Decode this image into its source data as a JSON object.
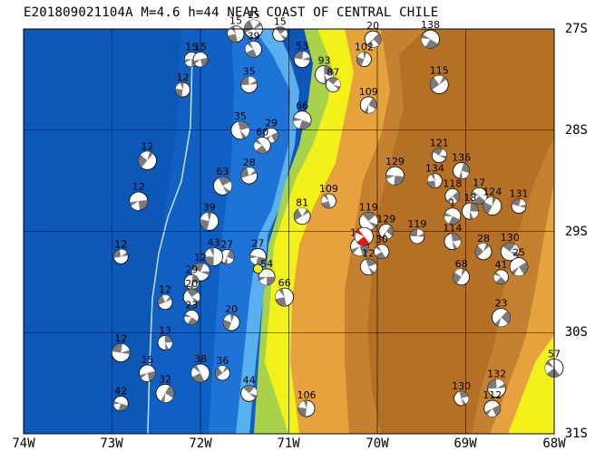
{
  "title": "E201809021104A  M=4.6  h=44  NEAR COAST OF CENTRAL CHILE",
  "lat_labels": [
    "27S",
    "28S",
    "29S",
    "30S",
    "31S"
  ],
  "lon_labels": [
    "74W",
    "73W",
    "72W",
    "71W",
    "70W",
    "69W",
    "68W"
  ],
  "colors": {
    "ocean_deep": "#0d56b8",
    "ocean_mid": "#1e74d6",
    "ocean_shelf": "#3a9be8",
    "coast_shelf": "#7ec6f0",
    "lowland_green": "#a8d24a",
    "lowland_yellow": "#f2f21a",
    "upland_orange": "#e6a23c",
    "highland_brown": "#b8752a",
    "mechanism_dark": "#7a7a7a",
    "mechanism_light": "#ffffff",
    "target_event": "#e01818",
    "epicenter_marker": "#f5f50a"
  },
  "events": [
    {
      "lon": -72.1,
      "lat": -27.3,
      "depth": "",
      "label": "15"
    },
    {
      "lon": -71.6,
      "lat": -27.05,
      "depth": "",
      "label": "15"
    },
    {
      "lon": -71.4,
      "lat": -27.0,
      "depth": "",
      "label": "15"
    },
    {
      "lon": -71.1,
      "lat": -27.05,
      "depth": "",
      "label": "15"
    },
    {
      "lon": -70.05,
      "lat": -27.1,
      "depth": "",
      "label": "20"
    },
    {
      "lon": -69.4,
      "lat": -27.1,
      "depth": "",
      "label": "138"
    },
    {
      "lon": -70.15,
      "lat": -27.3,
      "depth": "",
      "label": "102"
    },
    {
      "lon": -70.85,
      "lat": -27.3,
      "depth": "",
      "label": "53"
    },
    {
      "lon": -70.6,
      "lat": -27.45,
      "depth": "",
      "label": "93"
    },
    {
      "lon": -72.0,
      "lat": -27.3,
      "depth": "",
      "label": "15"
    },
    {
      "lon": -71.4,
      "lat": -27.2,
      "depth": "",
      "label": "39"
    },
    {
      "lon": -69.3,
      "lat": -27.55,
      "depth": "",
      "label": "115"
    },
    {
      "lon": -70.5,
      "lat": -27.55,
      "depth": "",
      "label": "87"
    },
    {
      "lon": -70.1,
      "lat": -27.75,
      "depth": "",
      "label": "109"
    },
    {
      "lon": -70.85,
      "lat": -27.9,
      "depth": "",
      "label": "66"
    },
    {
      "lon": -72.2,
      "lat": -27.6,
      "depth": "",
      "label": "12"
    },
    {
      "lon": -71.45,
      "lat": -27.55,
      "depth": "",
      "label": "35"
    },
    {
      "lon": -71.55,
      "lat": -28.0,
      "depth": "",
      "label": "35"
    },
    {
      "lon": -71.2,
      "lat": -28.05,
      "depth": "",
      "label": "29"
    },
    {
      "lon": -71.3,
      "lat": -28.15,
      "depth": "",
      "label": "60"
    },
    {
      "lon": -72.6,
      "lat": -28.3,
      "depth": "",
      "label": "12"
    },
    {
      "lon": -69.3,
      "lat": -28.25,
      "depth": "",
      "label": "121"
    },
    {
      "lon": -69.05,
      "lat": -28.4,
      "depth": "",
      "label": "136"
    },
    {
      "lon": -69.8,
      "lat": -28.45,
      "depth": "",
      "label": "129"
    },
    {
      "lon": -69.35,
      "lat": -28.5,
      "depth": "",
      "label": "134"
    },
    {
      "lon": -71.45,
      "lat": -28.45,
      "depth": "",
      "label": "28"
    },
    {
      "lon": -71.75,
      "lat": -28.55,
      "depth": "",
      "label": "63"
    },
    {
      "lon": -69.15,
      "lat": -28.65,
      "depth": "",
      "label": "118"
    },
    {
      "lon": -68.85,
      "lat": -28.65,
      "depth": "",
      "label": "17"
    },
    {
      "lon": -68.7,
      "lat": -28.75,
      "depth": "",
      "label": "124"
    },
    {
      "lon": -68.4,
      "lat": -28.75,
      "depth": "",
      "label": "131"
    },
    {
      "lon": -68.95,
      "lat": -28.8,
      "depth": "",
      "label": "18"
    },
    {
      "lon": -72.7,
      "lat": -28.7,
      "depth": "",
      "label": "12"
    },
    {
      "lon": -70.55,
      "lat": -28.7,
      "depth": "",
      "label": "109"
    },
    {
      "lon": -70.85,
      "lat": -28.85,
      "depth": "",
      "label": "81"
    },
    {
      "lon": -70.1,
      "lat": -28.9,
      "depth": "",
      "label": "119"
    },
    {
      "lon": -69.9,
      "lat": -29.0,
      "depth": "",
      "label": "129"
    },
    {
      "lon": -69.15,
      "lat": -28.85,
      "depth": "",
      "label": "1"
    },
    {
      "lon": -71.9,
      "lat": -28.9,
      "depth": "",
      "label": "39"
    },
    {
      "lon": -69.55,
      "lat": -29.05,
      "depth": "",
      "label": "119"
    },
    {
      "lon": -69.15,
      "lat": -29.1,
      "depth": "",
      "label": "114"
    },
    {
      "lon": -70.2,
      "lat": -29.15,
      "depth": "",
      "label": "117"
    },
    {
      "lon": -69.95,
      "lat": -29.2,
      "depth": "",
      "label": "30"
    },
    {
      "lon": -68.8,
      "lat": -29.2,
      "depth": "",
      "label": "28"
    },
    {
      "lon": -68.5,
      "lat": -29.2,
      "depth": "",
      "label": "130"
    },
    {
      "lon": -71.7,
      "lat": -29.25,
      "depth": "",
      "label": "27"
    },
    {
      "lon": -71.35,
      "lat": -29.25,
      "depth": "",
      "label": "27"
    },
    {
      "lon": -71.85,
      "lat": -29.25,
      "depth": "",
      "label": "43"
    },
    {
      "lon": -72.9,
      "lat": -29.25,
      "depth": "",
      "label": "12"
    },
    {
      "lon": -70.1,
      "lat": -29.35,
      "depth": "",
      "label": "12"
    },
    {
      "lon": -68.4,
      "lat": -29.35,
      "depth": "",
      "label": "25"
    },
    {
      "lon": -68.6,
      "lat": -29.45,
      "depth": "",
      "label": "41"
    },
    {
      "lon": -69.05,
      "lat": -29.45,
      "depth": "",
      "label": "68"
    },
    {
      "lon": -72.0,
      "lat": -29.4,
      "depth": "",
      "label": "12"
    },
    {
      "lon": -72.1,
      "lat": -29.5,
      "depth": "",
      "label": "29"
    },
    {
      "lon": -71.25,
      "lat": -29.45,
      "depth": "",
      "label": "54"
    },
    {
      "lon": -71.05,
      "lat": -29.65,
      "depth": "",
      "label": "66"
    },
    {
      "lon": -72.4,
      "lat": -29.7,
      "depth": "",
      "label": "12"
    },
    {
      "lon": -72.1,
      "lat": -29.65,
      "depth": "",
      "label": "20"
    },
    {
      "lon": -68.6,
      "lat": -29.85,
      "depth": "",
      "label": "23"
    },
    {
      "lon": -72.1,
      "lat": -29.85,
      "depth": "",
      "label": "23"
    },
    {
      "lon": -71.65,
      "lat": -29.9,
      "depth": "",
      "label": "20"
    },
    {
      "lon": -72.9,
      "lat": -30.2,
      "depth": "",
      "label": "12"
    },
    {
      "lon": -72.4,
      "lat": -30.1,
      "depth": "",
      "label": "13"
    },
    {
      "lon": -72.6,
      "lat": -30.4,
      "depth": "",
      "label": "15"
    },
    {
      "lon": -72.0,
      "lat": -30.4,
      "depth": "",
      "label": "38"
    },
    {
      "lon": -71.75,
      "lat": -30.4,
      "depth": "",
      "label": "36"
    },
    {
      "lon": -71.45,
      "lat": -30.6,
      "depth": "",
      "label": "44"
    },
    {
      "lon": -72.4,
      "lat": -30.6,
      "depth": "",
      "label": "32"
    },
    {
      "lon": -72.9,
      "lat": -30.7,
      "depth": "",
      "label": "42"
    },
    {
      "lon": -70.8,
      "lat": -30.75,
      "depth": "",
      "label": "106"
    },
    {
      "lon": -68.65,
      "lat": -30.55,
      "depth": "",
      "label": "132"
    },
    {
      "lon": -69.05,
      "lat": -30.65,
      "depth": "",
      "label": "130"
    },
    {
      "lon": -68.7,
      "lat": -30.75,
      "depth": "",
      "label": "112"
    },
    {
      "lon": -68.0,
      "lat": -30.35,
      "depth": "",
      "label": "57"
    }
  ],
  "target_event": {
    "lon": -70.15,
    "lat": -29.05
  },
  "epicenter": {
    "lon": -71.35,
    "lat": -29.37
  }
}
